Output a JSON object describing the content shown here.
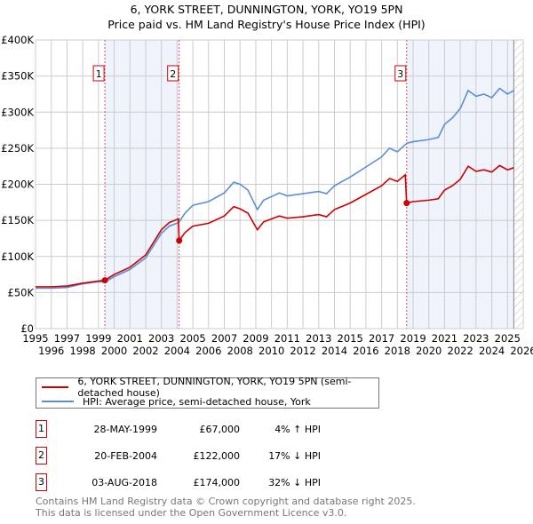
{
  "chart_data": {
    "type": "line",
    "title": "6, YORK STREET, DUNNINGTON, YORK, YO19 5PN",
    "subtitle": "Price paid vs. HM Land Registry's House Price Index (HPI)",
    "xlim": [
      1995,
      2026
    ],
    "ylim": [
      0,
      400000
    ],
    "x_ticks": [
      "1995",
      "1996",
      "1997",
      "1998",
      "1999",
      "2000",
      "2001",
      "2002",
      "2003",
      "2004",
      "2005",
      "2006",
      "2007",
      "2008",
      "2009",
      "2010",
      "2011",
      "2012",
      "2013",
      "2014",
      "2015",
      "2016",
      "2017",
      "2018",
      "2019",
      "2020",
      "2021",
      "2022",
      "2023",
      "2024",
      "2025",
      "2026"
    ],
    "y_ticks": [
      {
        "v": 0,
        "label": "£0"
      },
      {
        "v": 50000,
        "label": "£50K"
      },
      {
        "v": 100000,
        "label": "£100K"
      },
      {
        "v": 150000,
        "label": "£150K"
      },
      {
        "v": 200000,
        "label": "£200K"
      },
      {
        "v": 250000,
        "label": "£250K"
      },
      {
        "v": 300000,
        "label": "£300K"
      },
      {
        "v": 350000,
        "label": "£350K"
      },
      {
        "v": 400000,
        "label": "£400K"
      }
    ],
    "grid": true,
    "series": [
      {
        "name": "6, YORK STREET, DUNNINGTON, YORK, YO19 5PN (semi-detached house)",
        "color": "#cc0000",
        "x": [
          1995,
          1996,
          1997,
          1998,
          1999,
          1999.4,
          2000,
          2001,
          2002,
          2003,
          2003.5,
          2004.08,
          2004.13,
          2004.5,
          2005,
          2006,
          2007,
          2007.6,
          2008,
          2008.5,
          2009.1,
          2009.5,
          2010,
          2010.5,
          2011,
          2012,
          2013,
          2013.5,
          2014,
          2015,
          2016,
          2017,
          2017.5,
          2018,
          2018.5,
          2018.59,
          2019,
          2020,
          2020.6,
          2021,
          2021.5,
          2022,
          2022.5,
          2023,
          2023.5,
          2024,
          2024.5,
          2025,
          2025.4
        ],
        "y": [
          58000,
          58000,
          59000,
          63000,
          66000,
          67000,
          75000,
          85000,
          102000,
          137000,
          147000,
          152000,
          122000,
          133000,
          142000,
          146000,
          156000,
          169000,
          166000,
          160000,
          137000,
          148000,
          152000,
          156000,
          153000,
          155000,
          158000,
          155000,
          165000,
          174000,
          186000,
          198000,
          208000,
          204000,
          213000,
          174000,
          176000,
          178000,
          180000,
          192000,
          198000,
          207000,
          225000,
          218000,
          220000,
          217000,
          226000,
          220000,
          223000
        ]
      },
      {
        "name": "HPI: Average price, semi-detached house, York",
        "color": "#5b8fd4",
        "x": [
          1995,
          1996,
          1997,
          1998,
          1999,
          1999.4,
          2000,
          2001,
          2002,
          2002.5,
          2003,
          2003.5,
          2004.1,
          2004.5,
          2005,
          2006,
          2007,
          2007.6,
          2008,
          2008.5,
          2009.1,
          2009.5,
          2010,
          2010.5,
          2011,
          2012,
          2013,
          2013.5,
          2014,
          2015,
          2016,
          2017,
          2017.5,
          2018,
          2018.6,
          2019,
          2020,
          2020.6,
          2021,
          2021.5,
          2022,
          2022.5,
          2023,
          2023.5,
          2024,
          2024.5,
          2025,
          2025.4
        ],
        "y": [
          56000,
          56000,
          57000,
          62000,
          65000,
          64500,
          72000,
          82000,
          98000,
          115000,
          132000,
          142000,
          147000,
          160000,
          171000,
          176000,
          188000,
          203000,
          200000,
          192000,
          165000,
          178000,
          183000,
          188000,
          184000,
          187000,
          190000,
          187000,
          198000,
          210000,
          224000,
          238000,
          250000,
          245000,
          257000,
          259000,
          262000,
          265000,
          283000,
          292000,
          305000,
          330000,
          322000,
          325000,
          320000,
          333000,
          325000,
          330000
        ]
      }
    ],
    "sales": [
      {
        "n": "1",
        "x": 1999.41,
        "y": 67000,
        "date": "28-MAY-1999",
        "price": "£67,000",
        "hpi": "4% ↑ HPI"
      },
      {
        "n": "2",
        "x": 2004.13,
        "y": 122000,
        "date": "20-FEB-2004",
        "price": "£122,000",
        "hpi": "17% ↓ HPI"
      },
      {
        "n": "3",
        "x": 2018.59,
        "y": 174000,
        "date": "03-AUG-2018",
        "price": "£174,000",
        "hpi": "32% ↓ HPI"
      }
    ],
    "shaded": [
      [
        1999.41,
        2004.13
      ],
      [
        2018.59,
        2025.4
      ]
    ],
    "hatched_from": 2025.4
  },
  "footer": {
    "line1": "Contains HM Land Registry data © Crown copyright and database right 2025.",
    "line2": "This data is licensed under the Open Government Licence v3.0."
  }
}
